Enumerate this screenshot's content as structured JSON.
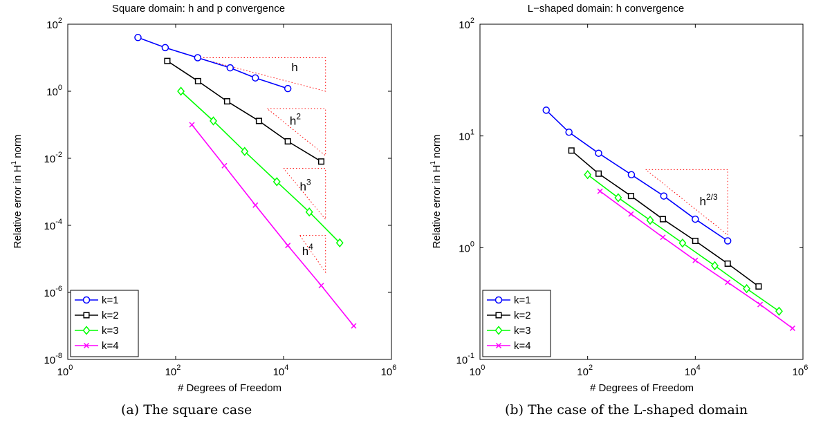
{
  "chart_data": [
    {
      "type": "line",
      "title": "Square domain: h and p convergence",
      "xlabel": "# Degrees of Freedom",
      "ylabel_main": "Relative error in H",
      "ylabel_sup": "1",
      "ylabel_tail": " norm",
      "xscale": "log",
      "yscale": "log",
      "xlim": [
        1,
        1000000
      ],
      "ylim": [
        1e-08,
        100
      ],
      "xticks": [
        {
          "value": 1,
          "base": "10",
          "exp": "0"
        },
        {
          "value": 100,
          "base": "10",
          "exp": "2"
        },
        {
          "value": 10000,
          "base": "10",
          "exp": "4"
        },
        {
          "value": 1000000,
          "base": "10",
          "exp": "6"
        }
      ],
      "yticks": [
        {
          "value": 1e-08,
          "base": "10",
          "exp": "-8"
        },
        {
          "value": 1e-06,
          "base": "10",
          "exp": "-6"
        },
        {
          "value": 0.0001,
          "base": "10",
          "exp": "-4"
        },
        {
          "value": 0.01,
          "base": "10",
          "exp": "-2"
        },
        {
          "value": 1,
          "base": "10",
          "exp": "0"
        },
        {
          "value": 100,
          "base": "10",
          "exp": "2"
        }
      ],
      "grid": false,
      "legend_position": "bottom-left",
      "series": [
        {
          "name": "k=1",
          "color": "#0000ff",
          "marker": "circle",
          "x": [
            20,
            64,
            256,
            1024,
            3000,
            12000
          ],
          "y": [
            40,
            20,
            10,
            5,
            2.5,
            1.2
          ]
        },
        {
          "name": "k=2",
          "color": "#000000",
          "marker": "square",
          "x": [
            70,
            260,
            900,
            3500,
            12000,
            50000
          ],
          "y": [
            8,
            2,
            0.5,
            0.13,
            0.032,
            0.008
          ]
        },
        {
          "name": "k=3",
          "color": "#00ff00",
          "marker": "diamond",
          "x": [
            125,
            500,
            1900,
            7500,
            30000,
            110000
          ],
          "y": [
            1.0,
            0.13,
            0.016,
            0.002,
            0.00025,
            3e-05
          ]
        },
        {
          "name": "k=4",
          "color": "#ff00ff",
          "marker": "x",
          "x": [
            200,
            800,
            3000,
            12000,
            50000,
            200000
          ],
          "y": [
            0.1,
            0.006,
            0.0004,
            2.5e-05,
            1.6e-06,
            1e-07
          ]
        }
      ],
      "annotations": [
        {
          "label_main": "h",
          "label_sup": "",
          "x_left": 250,
          "x_right": 60000,
          "y_top": 10,
          "y_bottom": 1,
          "label_x": 14000,
          "label_y": 4
        },
        {
          "label_main": "h",
          "label_sup": "2",
          "x_left": 5000,
          "x_right": 60000,
          "y_top": 0.3,
          "y_bottom": 0.012,
          "label_x": 13000,
          "label_y": 0.1
        },
        {
          "label_main": "h",
          "label_sup": "3",
          "x_left": 10000,
          "x_right": 60000,
          "y_top": 0.005,
          "y_bottom": 0.00015,
          "label_x": 20000,
          "label_y": 0.0011
        },
        {
          "label_main": "h",
          "label_sup": "4",
          "x_left": 20000,
          "x_right": 60000,
          "y_top": 5e-05,
          "y_bottom": 4e-06,
          "label_x": 22000,
          "label_y": 1.3e-05
        }
      ]
    },
    {
      "type": "line",
      "title": "L−shaped domain: h convergence",
      "xlabel": "# Degrees of Freedom",
      "ylabel_main": "Relative error in H",
      "ylabel_sup": "1",
      "ylabel_tail": " norm",
      "xscale": "log",
      "yscale": "log",
      "xlim": [
        1,
        1000000
      ],
      "ylim": [
        0.1,
        100
      ],
      "xticks": [
        {
          "value": 1,
          "base": "10",
          "exp": "0"
        },
        {
          "value": 100,
          "base": "10",
          "exp": "2"
        },
        {
          "value": 10000,
          "base": "10",
          "exp": "4"
        },
        {
          "value": 1000000,
          "base": "10",
          "exp": "6"
        }
      ],
      "yticks": [
        {
          "value": 0.1,
          "base": "10",
          "exp": "-1"
        },
        {
          "value": 1,
          "base": "10",
          "exp": "0"
        },
        {
          "value": 10,
          "base": "10",
          "exp": "1"
        },
        {
          "value": 100,
          "base": "10",
          "exp": "2"
        }
      ],
      "grid": false,
      "legend_position": "bottom-left",
      "series": [
        {
          "name": "k=1",
          "color": "#0000ff",
          "marker": "circle",
          "x": [
            17,
            45,
            160,
            650,
            2600,
            10000,
            40000
          ],
          "y": [
            17,
            10.8,
            7.0,
            4.5,
            2.9,
            1.8,
            1.15
          ]
        },
        {
          "name": "k=2",
          "color": "#000000",
          "marker": "square",
          "x": [
            50,
            160,
            640,
            2500,
            10000,
            40000,
            150000
          ],
          "y": [
            7.4,
            4.6,
            2.9,
            1.8,
            1.15,
            0.72,
            0.45
          ]
        },
        {
          "name": "k=3",
          "color": "#00ff00",
          "marker": "diamond",
          "x": [
            100,
            370,
            1450,
            5800,
            23000,
            90000,
            360000
          ],
          "y": [
            4.5,
            2.8,
            1.76,
            1.1,
            0.69,
            0.43,
            0.27
          ]
        },
        {
          "name": "k=4",
          "color": "#ff00ff",
          "marker": "x",
          "x": [
            170,
            640,
            2500,
            10000,
            40000,
            160000,
            640000
          ],
          "y": [
            3.2,
            2.0,
            1.24,
            0.77,
            0.49,
            0.31,
            0.19
          ]
        }
      ],
      "annotations": [
        {
          "label_main": "h",
          "label_sup": "2/3",
          "x_left": 1200,
          "x_right": 40000,
          "y_top": 5,
          "y_bottom": 1.3,
          "label_x": 12000,
          "label_y": 2.4
        }
      ]
    }
  ],
  "captions": {
    "left": "(a)  The square case",
    "right": "(b)  The case of the L-shaped domain"
  }
}
